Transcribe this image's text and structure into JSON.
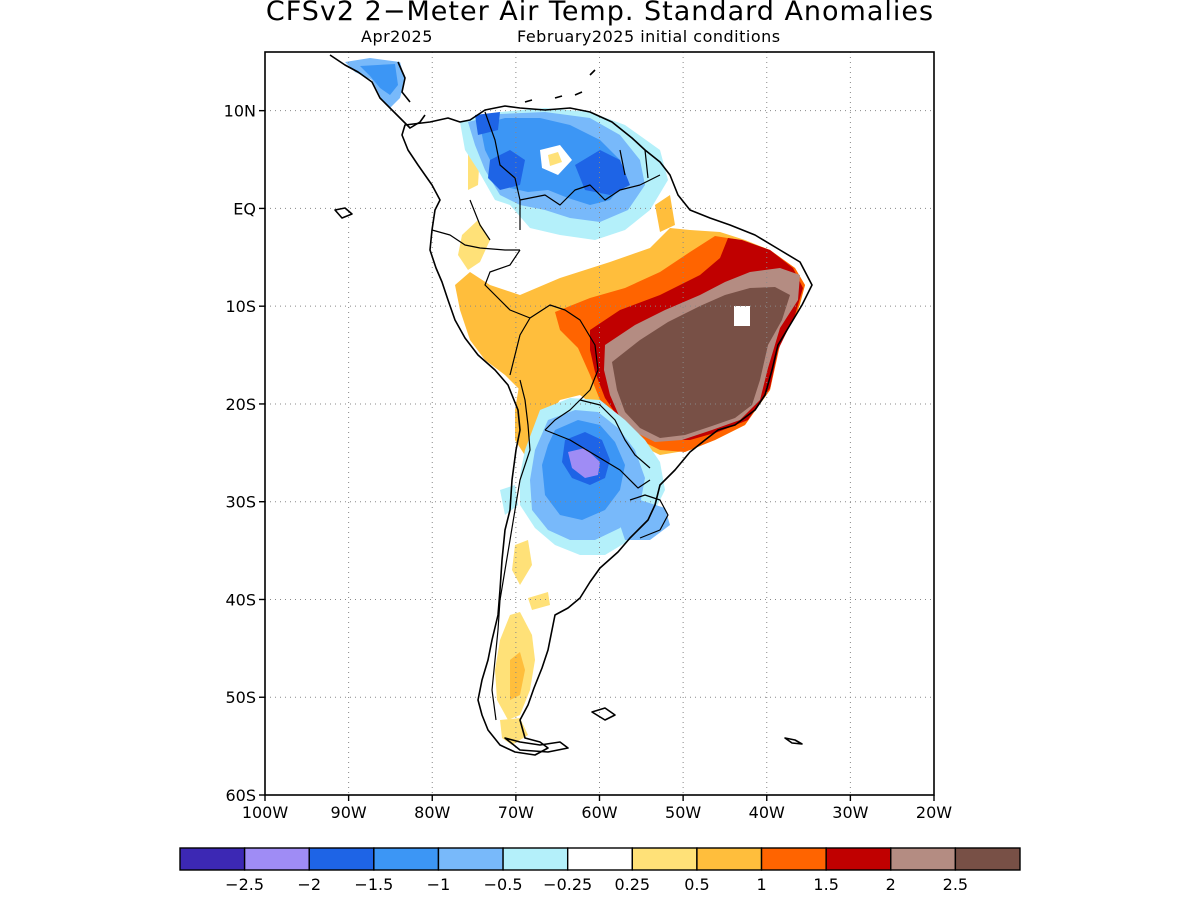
{
  "title": "CFSv2 2−Meter Air Temp. Standard Anomalies",
  "subtitle_left": "Apr2025",
  "subtitle_right": "February2025 initial conditions",
  "axes": {
    "lat_ticks": [
      {
        "value": 10,
        "label": "10N"
      },
      {
        "value": 0,
        "label": "EQ"
      },
      {
        "value": -10,
        "label": "10S"
      },
      {
        "value": -20,
        "label": "20S"
      },
      {
        "value": -30,
        "label": "30S"
      },
      {
        "value": -40,
        "label": "40S"
      },
      {
        "value": -50,
        "label": "50S"
      },
      {
        "value": -60,
        "label": "60S"
      }
    ],
    "lon_ticks": [
      {
        "value": -100,
        "label": "100W"
      },
      {
        "value": -90,
        "label": "90W"
      },
      {
        "value": -80,
        "label": "80W"
      },
      {
        "value": -70,
        "label": "70W"
      },
      {
        "value": -60,
        "label": "60W"
      },
      {
        "value": -50,
        "label": "50W"
      },
      {
        "value": -40,
        "label": "40W"
      },
      {
        "value": -30,
        "label": "30W"
      },
      {
        "value": -20,
        "label": "20W"
      }
    ],
    "lon_range": [
      -100,
      -20
    ],
    "lat_range": [
      -60,
      16
    ]
  },
  "legend": {
    "colors": [
      "#3c28b4",
      "#9f8cf5",
      "#1e64e6",
      "#3c96f5",
      "#78b9fa",
      "#b4f0fa",
      "#ffffff",
      "#ffe178",
      "#ffbe3c",
      "#ff6400",
      "#c00000",
      "#b48c82",
      "#785046"
    ],
    "labels": [
      "−2.5",
      "−2",
      "−1.5",
      "−1",
      "−0.5",
      "−0.25",
      "0.25",
      "0.5",
      "1",
      "1.5",
      "2",
      "2.5"
    ]
  },
  "map_data": {
    "type": "anomaly-map",
    "region": "South America",
    "variable": "2-meter air temperature standard anomaly",
    "shaded_regions": [
      {
        "category": "2.5",
        "color": "#785046",
        "area": "central-east Brazil"
      },
      {
        "category": "2",
        "color": "#b48c82",
        "area": "ring around central-east Brazil maximum"
      },
      {
        "category": "1.5",
        "color": "#c00000",
        "area": "northeast and central Brazil"
      },
      {
        "category": "1",
        "color": "#ff6400",
        "area": "central Brazil"
      },
      {
        "category": "0.5",
        "color": "#ffbe3c",
        "area": "Peru, Bolivia, central Brazil"
      },
      {
        "category": "0.25",
        "color": "#ffe178",
        "area": "Patagonia, Andes"
      },
      {
        "category": "-1",
        "color": "#3c96f5",
        "area": "Venezuela, Paraguay, northern Argentina"
      },
      {
        "category": "-1.5",
        "color": "#1e64e6",
        "area": "Venezuela, Paraguay"
      },
      {
        "category": "-2",
        "color": "#9f8cf5",
        "area": "Paraguay / northern Argentina"
      }
    ]
  }
}
